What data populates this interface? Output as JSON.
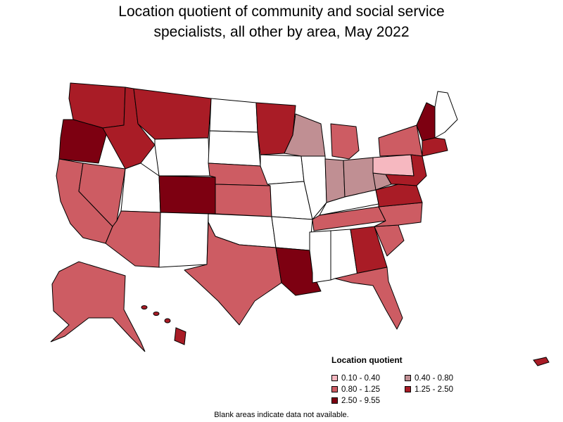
{
  "title": {
    "line1": "Location quotient of community and social service",
    "line2": "specialists, all other by area, May 2022"
  },
  "legend": {
    "title": "Location quotient",
    "items": [
      {
        "label": "0.10 - 0.40",
        "color": "#f6b8c0"
      },
      {
        "label": "0.40 - 0.80",
        "color": "#c08f93"
      },
      {
        "label": "0.80 - 1.25",
        "color": "#cd5c63"
      },
      {
        "label": "1.25 - 2.50",
        "color": "#a91c26"
      },
      {
        "label": "2.50 - 9.55",
        "color": "#7d0011"
      }
    ]
  },
  "footnote": "Blank areas indicate data not available.",
  "map": {
    "regions": [
      {
        "name": "washington",
        "bin": "1.25 - 2.50"
      },
      {
        "name": "oregon",
        "bin": "2.50 - 9.55"
      },
      {
        "name": "california",
        "bin": "0.80 - 1.25"
      },
      {
        "name": "nevada",
        "bin": "0.80 - 1.25"
      },
      {
        "name": "idaho",
        "bin": "1.25 - 2.50"
      },
      {
        "name": "montana",
        "bin": "1.25 - 2.50"
      },
      {
        "name": "wyoming",
        "bin": "none"
      },
      {
        "name": "utah",
        "bin": "none"
      },
      {
        "name": "arizona",
        "bin": "0.80 - 1.25"
      },
      {
        "name": "colorado",
        "bin": "2.50 - 9.55"
      },
      {
        "name": "new-mexico",
        "bin": "none"
      },
      {
        "name": "north-dakota",
        "bin": "none"
      },
      {
        "name": "south-dakota",
        "bin": "none"
      },
      {
        "name": "nebraska",
        "bin": "0.80 - 1.25"
      },
      {
        "name": "kansas",
        "bin": "0.80 - 1.25"
      },
      {
        "name": "oklahoma",
        "bin": "none"
      },
      {
        "name": "texas",
        "bin": "0.80 - 1.25"
      },
      {
        "name": "minnesota",
        "bin": "1.25 - 2.50"
      },
      {
        "name": "iowa",
        "bin": "none"
      },
      {
        "name": "missouri",
        "bin": "none"
      },
      {
        "name": "arkansas",
        "bin": "none"
      },
      {
        "name": "louisiana",
        "bin": "2.50 - 9.55"
      },
      {
        "name": "wisconsin",
        "bin": "0.40 - 0.80"
      },
      {
        "name": "illinois",
        "bin": "none"
      },
      {
        "name": "michigan",
        "bin": "0.80 - 1.25"
      },
      {
        "name": "indiana",
        "bin": "0.40 - 0.80"
      },
      {
        "name": "ohio",
        "bin": "0.40 - 0.80"
      },
      {
        "name": "kentucky",
        "bin": "none"
      },
      {
        "name": "tennessee",
        "bin": "0.80 - 1.25"
      },
      {
        "name": "mississippi",
        "bin": "none"
      },
      {
        "name": "alabama",
        "bin": "none"
      },
      {
        "name": "georgia",
        "bin": "1.25 - 2.50"
      },
      {
        "name": "florida",
        "bin": "0.80 - 1.25"
      },
      {
        "name": "south-carolina",
        "bin": "0.80 - 1.25"
      },
      {
        "name": "north-carolina",
        "bin": "0.80 - 1.25"
      },
      {
        "name": "virginia",
        "bin": "1.25 - 2.50"
      },
      {
        "name": "west-virginia",
        "bin": "0.40 - 0.80"
      },
      {
        "name": "pennsylvania",
        "bin": "0.10 - 0.40"
      },
      {
        "name": "new-york",
        "bin": "0.80 - 1.25"
      },
      {
        "name": "vermont-nh",
        "bin": "2.50 - 9.55"
      },
      {
        "name": "maine",
        "bin": "none"
      },
      {
        "name": "southern-new-england",
        "bin": "1.25 - 2.50"
      },
      {
        "name": "alaska",
        "bin": "0.80 - 1.25"
      },
      {
        "name": "hawaii",
        "bin": "1.25 - 2.50"
      },
      {
        "name": "puerto-rico",
        "bin": "1.25 - 2.50"
      }
    ]
  }
}
